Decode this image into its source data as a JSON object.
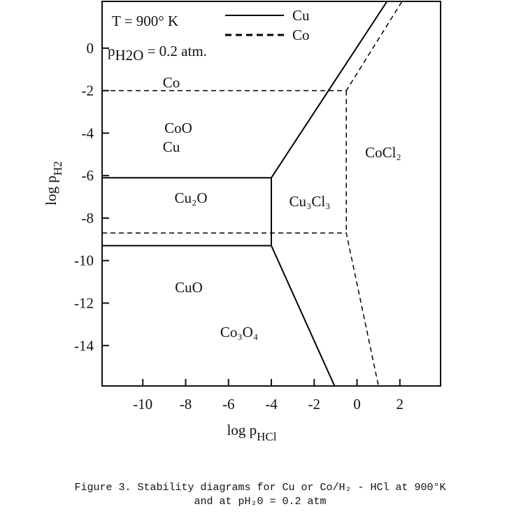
{
  "chart_data": {
    "type": "line",
    "annotations": [
      "T = 900° K",
      "Co",
      "CoO",
      "Cu",
      "Cu₂O",
      "Cu₃Cl₃",
      "CoCl₂",
      "CuO",
      "Co₃O₄"
    ],
    "pressure_note": [
      "p",
      "H2O",
      " = 0.2 atm."
    ],
    "x_label": [
      "log p",
      "HCl"
    ],
    "y_label": [
      "log p",
      "H2"
    ],
    "xlim": [
      -11.9,
      3.9
    ],
    "ylim": [
      -15.9,
      2.2
    ],
    "xticks": [
      -10,
      -8,
      -6,
      -4,
      -2,
      0,
      2
    ],
    "yticks": [
      0,
      -2,
      -4,
      -6,
      -8,
      -10,
      -12,
      -14
    ],
    "series": [
      {
        "name": "Cu",
        "color": "#000000",
        "line_style": "solid",
        "x": [
          -11.9,
          -4,
          1.4,
          null,
          -11.9,
          -4,
          -1.05,
          null,
          -4,
          -4
        ],
        "values": [
          -6.1,
          -6.1,
          2.2,
          null,
          -9.3,
          -9.3,
          -15.9,
          null,
          -6.1,
          -9.3
        ]
      },
      {
        "name": "Co",
        "color": "#000000",
        "line_style": "dashed",
        "x": [
          -11.9,
          -0.5,
          2.1,
          null,
          -11.9,
          -0.5,
          1.0,
          null,
          -0.5,
          -0.5
        ],
        "values": [
          -2,
          -2,
          2.2,
          null,
          -8.7,
          -8.7,
          -15.9,
          null,
          -2,
          -8.7
        ]
      }
    ],
    "caption": [
      "Figure 3. Stability diagrams for Cu or Co/H₂ - HCl at 900°K",
      "and at pH₂0 = 0.2 atm"
    ]
  }
}
